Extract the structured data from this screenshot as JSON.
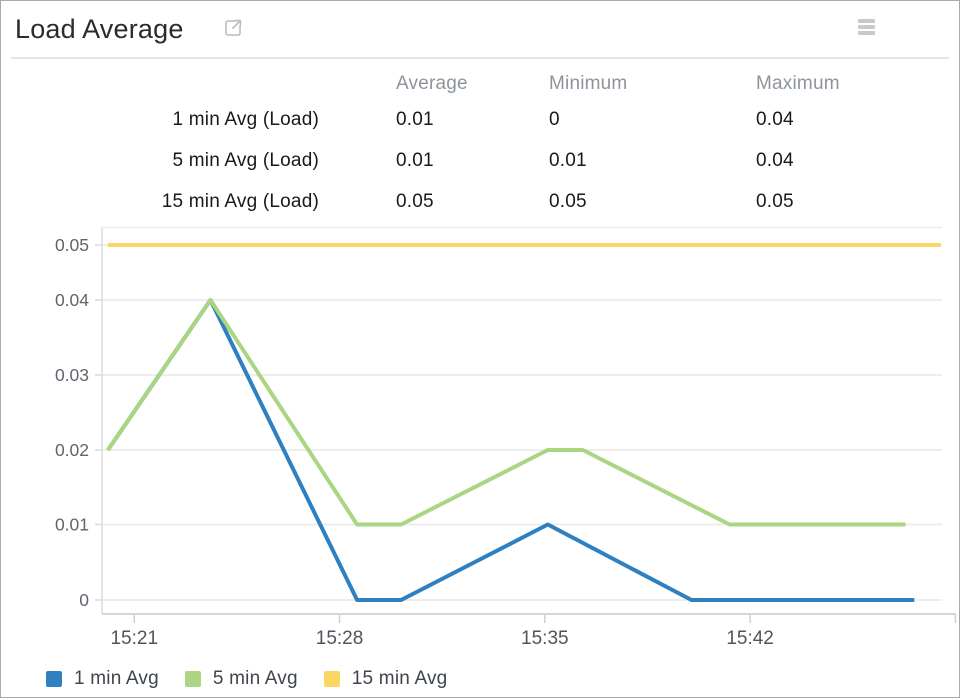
{
  "widget": {
    "title": "Load Average"
  },
  "summary_table": {
    "columns": [
      "Average",
      "Minimum",
      "Maximum"
    ],
    "rows": [
      {
        "label": "1 min Avg (Load)",
        "values": [
          "0.01",
          "0",
          "0.04"
        ]
      },
      {
        "label": "5 min Avg (Load)",
        "values": [
          "0.01",
          "0.01",
          "0.04"
        ]
      },
      {
        "label": "15 min Avg (Load)",
        "values": [
          "0.05",
          "0.05",
          "0.05"
        ]
      }
    ]
  },
  "chart_data": {
    "type": "line",
    "title": "Load Average",
    "xlabel": "",
    "ylabel": "",
    "ylim": [
      0,
      0.05
    ],
    "x_unit": "minutes after 15:00 (clock time)",
    "x_range_minutes": [
      19.9,
      48.6
    ],
    "grid": "horizontal",
    "legend_position": "bottom",
    "y_ticks": [
      {
        "v": 0,
        "label": "0"
      },
      {
        "v": 0.01,
        "label": "0.01"
      },
      {
        "v": 0.02,
        "label": "0.02"
      },
      {
        "v": 0.03,
        "label": "0.03"
      },
      {
        "v": 0.04,
        "label": "0.04"
      },
      {
        "v": 0.05,
        "label": "0.05"
      }
    ],
    "x_ticks": [
      {
        "t": 21,
        "label": "15:21"
      },
      {
        "t": 28,
        "label": "15:28"
      },
      {
        "t": 35,
        "label": "15:35"
      },
      {
        "t": 42,
        "label": "15:42"
      },
      {
        "t": 49,
        "label": ""
      }
    ],
    "series": [
      {
        "name": "1 min Avg",
        "color": "#2e80c1",
        "points": [
          [
            20.1,
            0.02
          ],
          [
            23.6,
            0.04
          ],
          [
            28.6,
            0
          ],
          [
            30.1,
            0
          ],
          [
            35.1,
            0.01
          ],
          [
            40.0,
            0
          ],
          [
            47.6,
            0
          ]
        ]
      },
      {
        "name": "5 min Avg",
        "color": "#aad684",
        "points": [
          [
            20.1,
            0.02
          ],
          [
            23.6,
            0.04
          ],
          [
            28.6,
            0.01
          ],
          [
            30.1,
            0.01
          ],
          [
            35.1,
            0.02
          ],
          [
            36.3,
            0.02
          ],
          [
            41.3,
            0.01
          ],
          [
            47.3,
            0.01
          ]
        ]
      },
      {
        "name": "15 min Avg",
        "color": "#fbd665",
        "points": [
          [
            20.1,
            0.05
          ],
          [
            48.5,
            0.05
          ]
        ]
      }
    ]
  }
}
